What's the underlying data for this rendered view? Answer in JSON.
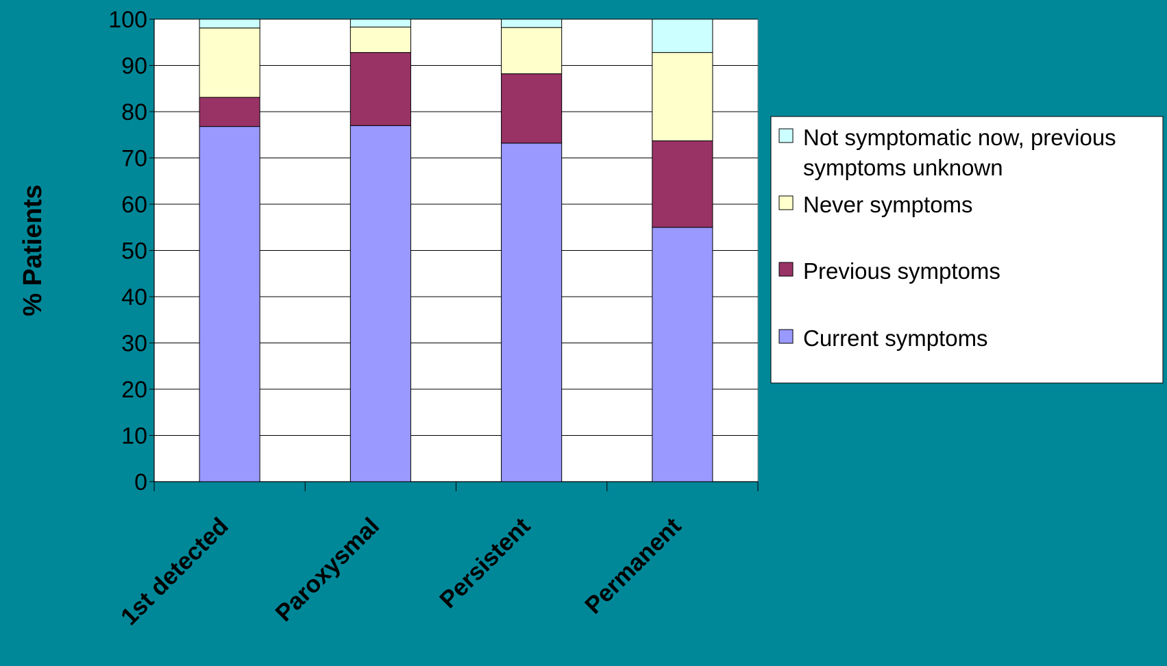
{
  "chart_data": {
    "type": "bar",
    "stacked": true,
    "title": "",
    "xlabel": "",
    "ylabel": "% Patients",
    "ylim": [
      0,
      100
    ],
    "yticks": [
      0,
      10,
      20,
      30,
      40,
      50,
      60,
      70,
      80,
      90,
      100
    ],
    "grid": true,
    "legend_position": "right",
    "categories": [
      "1st detected",
      "Paroxysmal",
      "Persistent",
      "Permanent"
    ],
    "series": [
      {
        "name": "Current symptoms",
        "color": "#9999ff",
        "values": [
          76.8,
          77,
          73.2,
          55
        ]
      },
      {
        "name": "Previous symptoms",
        "color": "#993366",
        "values": [
          6.3,
          15.8,
          15,
          18.7
        ]
      },
      {
        "name": "Never symptoms",
        "color": "#ffffcc",
        "values": [
          15,
          5.5,
          10,
          19.1
        ]
      },
      {
        "name": "Not symptomatic now, previous symptoms unknown",
        "color": "#ccffff",
        "values": [
          1.9,
          1.7,
          1.8,
          7.2
        ]
      }
    ],
    "legend_order": [
      {
        "lines": [
          "Not symptomatic now, previous",
          "symptoms unknown"
        ],
        "color": "#ccffff"
      },
      {
        "lines": [
          "Never symptoms"
        ],
        "color": "#ffffcc"
      },
      {
        "lines": [
          "Previous symptoms"
        ],
        "color": "#993366"
      },
      {
        "lines": [
          "Current symptoms"
        ],
        "color": "#9999ff"
      }
    ],
    "colors": {
      "background": "#008899",
      "plot_area": "#ffffff",
      "axis": "#000000"
    }
  }
}
